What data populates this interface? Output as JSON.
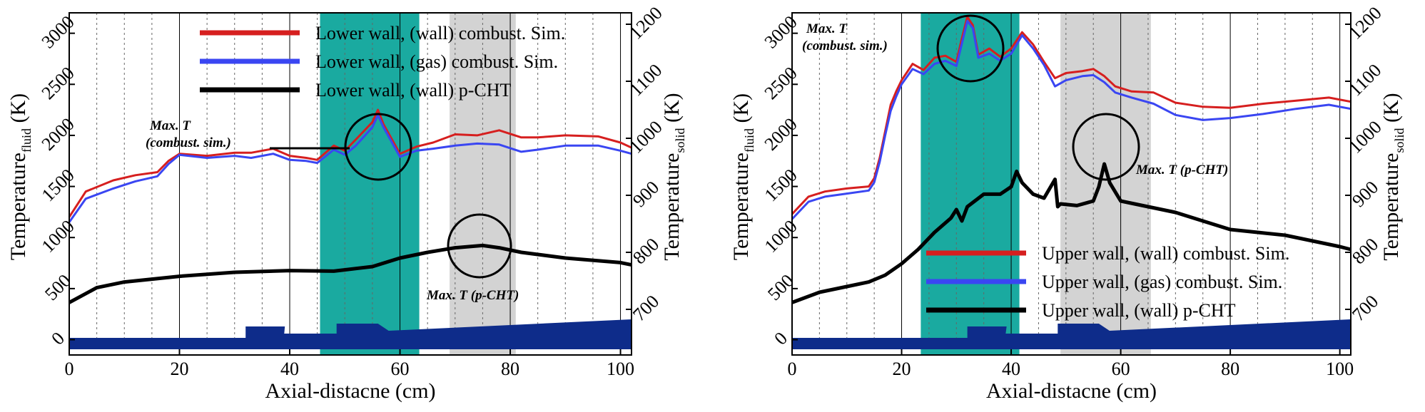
{
  "chart_data": [
    {
      "type": "line",
      "panel": "left",
      "xlabel": "Axial-distacne (cm)",
      "ylabel_main": "Temperature",
      "ylabel_sub": "fluid",
      "ylabel_unit": " (K)",
      "y2label_main": "Temperature",
      "y2label_sub": "solid",
      "y2label_unit": " (K)",
      "xlim": [
        0,
        102
      ],
      "ylim": [
        -150,
        3200
      ],
      "y2lim": [
        620,
        1220
      ],
      "x_ticks": [
        "0",
        "20",
        "40",
        "60",
        "80",
        "100"
      ],
      "y_ticks": [
        "0",
        "500",
        "1000",
        "1500",
        "2000",
        "2500",
        "3000"
      ],
      "y2_ticks": [
        "700",
        "800",
        "900",
        "1000",
        "1100",
        "1200"
      ],
      "legend_position": "top-center",
      "shaded_regions": [
        {
          "from": 45.5,
          "to": 63.5,
          "color": "#1aaaa0"
        },
        {
          "from": 69,
          "to": 81,
          "color": "#d3d3d3"
        }
      ],
      "series": [
        {
          "name": "Lower wall, (wall) combust. Sim.",
          "axis": "fluid",
          "color": "#d61f1f",
          "x": [
            0,
            3,
            8,
            12,
            16,
            18,
            20,
            25,
            30,
            33,
            37,
            40,
            43,
            45,
            48,
            50,
            52,
            55,
            56,
            57,
            60,
            63,
            66,
            70,
            74,
            78,
            82,
            85,
            90,
            96,
            100,
            102
          ],
          "y": [
            1200,
            1450,
            1560,
            1610,
            1640,
            1750,
            1820,
            1800,
            1830,
            1830,
            1870,
            1800,
            1780,
            1760,
            1900,
            1850,
            1960,
            2130,
            2250,
            2110,
            1820,
            1890,
            1930,
            2010,
            2000,
            2050,
            1980,
            1980,
            2000,
            1990,
            1930,
            1880
          ]
        },
        {
          "name": "Lower wall, (gas) combust. Sim.",
          "axis": "fluid",
          "color": "#3a46f2",
          "x": [
            0,
            3,
            8,
            12,
            16,
            18,
            20,
            25,
            30,
            33,
            37,
            40,
            43,
            45,
            48,
            50,
            52,
            55,
            56,
            57,
            60,
            63,
            66,
            70,
            74,
            78,
            82,
            85,
            90,
            96,
            100,
            102
          ],
          "y": [
            1150,
            1380,
            1480,
            1550,
            1600,
            1720,
            1810,
            1780,
            1800,
            1780,
            1820,
            1760,
            1750,
            1730,
            1860,
            1810,
            1900,
            2080,
            2200,
            2080,
            1790,
            1850,
            1870,
            1900,
            1920,
            1910,
            1840,
            1860,
            1900,
            1900,
            1850,
            1820
          ]
        },
        {
          "name": "Lower wall, (wall) p-CHT",
          "axis": "solid",
          "color": "#000000",
          "x": [
            0,
            5,
            10,
            20,
            30,
            40,
            48,
            55,
            60,
            65,
            70,
            75,
            78,
            82,
            90,
            100,
            102
          ],
          "y": [
            712,
            738,
            748,
            758,
            765,
            768,
            767,
            775,
            790,
            800,
            808,
            812,
            808,
            800,
            790,
            782,
            778
          ]
        }
      ],
      "annotations": [
        {
          "text_line1": "Max. T",
          "text_line2": "(combust. sim.)"
        },
        {
          "text_line1": "Max. T (p-CHT)"
        }
      ]
    },
    {
      "type": "line",
      "panel": "right",
      "xlabel": "Axial-distacne (cm)",
      "ylabel_main": "Temperature",
      "ylabel_sub": "fluid",
      "ylabel_unit": " (K)",
      "y2label_main": "Temperature",
      "y2label_sub": "solid",
      "y2label_unit": " (K)",
      "xlim": [
        0,
        102
      ],
      "ylim": [
        -150,
        3200
      ],
      "y2lim": [
        620,
        1220
      ],
      "x_ticks": [
        "0",
        "20",
        "40",
        "60",
        "80",
        "100"
      ],
      "y_ticks": [
        "0",
        "500",
        "1000",
        "1500",
        "2000",
        "2500",
        "3000"
      ],
      "y2_ticks": [
        "700",
        "800",
        "900",
        "1000",
        "1100",
        "1200"
      ],
      "legend_position": "bottom-center",
      "shaded_regions": [
        {
          "from": 23.5,
          "to": 41.5,
          "color": "#1aaaa0"
        },
        {
          "from": 49,
          "to": 65.5,
          "color": "#d3d3d3"
        }
      ],
      "series": [
        {
          "name": "Upper wall, (wall) combust. Sim.",
          "axis": "fluid",
          "color": "#d61f1f",
          "x": [
            0,
            3,
            6,
            10,
            14,
            15,
            16,
            17,
            18,
            19,
            20,
            22,
            24,
            26,
            28,
            30,
            31,
            32,
            33,
            34,
            36,
            38,
            40,
            42,
            44,
            46,
            48,
            50,
            53,
            55,
            57,
            59,
            62,
            66,
            70,
            75,
            80,
            86,
            92,
            98,
            102
          ],
          "y": [
            1230,
            1400,
            1450,
            1480,
            1500,
            1580,
            1780,
            2040,
            2300,
            2430,
            2540,
            2700,
            2640,
            2760,
            2780,
            2720,
            2950,
            3160,
            3080,
            2790,
            2850,
            2770,
            2850,
            3010,
            2890,
            2720,
            2560,
            2610,
            2630,
            2650,
            2580,
            2480,
            2430,
            2420,
            2320,
            2280,
            2270,
            2310,
            2340,
            2370,
            2330
          ]
        },
        {
          "name": "Upper wall, (gas) combust. Sim.",
          "axis": "fluid",
          "color": "#3a46f2",
          "x": [
            0,
            3,
            6,
            10,
            14,
            15,
            16,
            17,
            18,
            19,
            20,
            22,
            24,
            26,
            28,
            30,
            31,
            32,
            33,
            34,
            36,
            38,
            40,
            42,
            44,
            46,
            48,
            50,
            53,
            55,
            57,
            59,
            62,
            66,
            70,
            75,
            80,
            86,
            92,
            98,
            102
          ],
          "y": [
            1180,
            1350,
            1400,
            1430,
            1460,
            1540,
            1740,
            2000,
            2240,
            2380,
            2500,
            2650,
            2600,
            2700,
            2730,
            2680,
            2900,
            3120,
            3050,
            2760,
            2800,
            2730,
            2800,
            2980,
            2850,
            2690,
            2480,
            2540,
            2580,
            2590,
            2520,
            2420,
            2370,
            2310,
            2200,
            2150,
            2170,
            2210,
            2260,
            2300,
            2260
          ]
        },
        {
          "name": "Upper wall, (wall) p-CHT",
          "axis": "solid",
          "color": "#000000",
          "x": [
            0,
            5,
            10,
            14,
            17,
            20,
            23,
            26,
            29,
            30,
            31,
            32,
            35,
            38,
            40,
            41,
            42,
            44,
            46,
            48,
            48.5,
            49,
            52,
            55,
            56,
            57,
            58,
            60,
            65,
            70,
            75,
            80,
            85,
            90,
            95,
            100,
            102
          ],
          "y": [
            712,
            730,
            740,
            748,
            760,
            780,
            805,
            835,
            860,
            875,
            855,
            880,
            902,
            902,
            915,
            942,
            922,
            902,
            895,
            928,
            880,
            885,
            882,
            890,
            915,
            955,
            922,
            890,
            880,
            870,
            855,
            840,
            835,
            830,
            820,
            810,
            805
          ]
        }
      ],
      "annotations": [
        {
          "text_line1": "Max. T",
          "text_line2": "(combust. sim.)"
        },
        {
          "text_line1": "Max. T (p-CHT)"
        }
      ]
    }
  ]
}
